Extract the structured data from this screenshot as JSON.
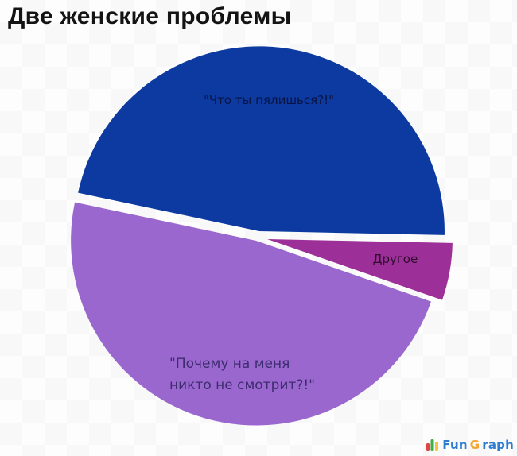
{
  "title": "Две женские проблемы",
  "chart_data": {
    "type": "pie",
    "title": "Две женские проблемы",
    "legend_position": "none",
    "exploded": true,
    "start_angle_deg": 168,
    "direction": "clockwise",
    "slices": [
      {
        "label": "\"Что ты пялишься?!\"",
        "value": 47,
        "color": "#0c3aa0",
        "label_color": "#0a1444"
      },
      {
        "label": "Другое",
        "value": 5,
        "color": "#9d2f99",
        "label_color": "#2a0d28"
      },
      {
        "label": "\"Почему на меня никто не смотрит?!\"",
        "label_lines": [
          "\"Почему на меня",
          "никто не смотрит?!\""
        ],
        "value": 48,
        "color": "#9a67ce",
        "label_color": "#3e2c70"
      }
    ]
  },
  "watermark": {
    "brand": "FunGraph",
    "text_fun": "Fun",
    "text_g": "G",
    "text_raph": "raph",
    "colors": {
      "text_blue": "#2e7cd0",
      "g_orange": "#f4a52e",
      "bar_red": "#e04545",
      "bar_green": "#3fae49",
      "bar_yellow": "#f6c33d"
    }
  },
  "colors": {
    "background": "#fdfdfd",
    "title_text": "#141414"
  }
}
